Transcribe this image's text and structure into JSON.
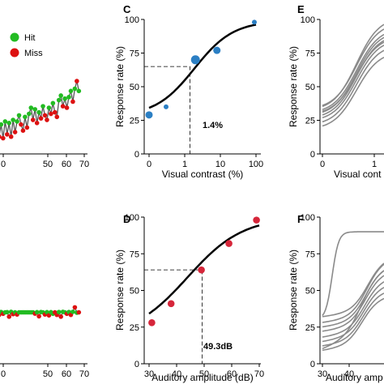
{
  "panel_labels": {
    "C": "C",
    "D": "D",
    "E": "E",
    "F": "F"
  },
  "legend": {
    "hit": "Hit",
    "miss": "Miss",
    "hit_color": "#22bb22",
    "miss_color": "#dd1111"
  },
  "colors": {
    "blue_point": "#2b7fc4",
    "red_point": "#d6263a",
    "fit_line": "#000000",
    "gray_line": "#8a8a8a",
    "hit": "#22bb22",
    "miss": "#dd1111",
    "trace": "#555555"
  },
  "annotations": {
    "threshold_visual": "1.4%",
    "threshold_auditory": "49.3dB"
  },
  "chart_data": [
    {
      "id": "A",
      "type": "line",
      "xlim": [
        0,
        70
      ],
      "xticks": [
        "0",
        "50",
        "60",
        "70"
      ],
      "series": [
        {
          "outcomes": [
            "miss",
            "hit",
            "miss",
            "hit",
            "miss",
            "hit",
            "miss",
            "hit",
            "miss",
            "hit",
            "miss",
            "hit",
            "hit",
            "miss",
            "miss",
            "hit",
            "miss",
            "hit",
            "hit",
            "miss",
            "hit",
            "miss",
            "hit",
            "miss",
            "hit",
            "miss",
            "miss",
            "hit",
            "miss",
            "hit",
            "miss",
            "miss",
            "hit",
            "hit",
            "miss",
            "hit",
            "miss",
            "hit",
            "hit",
            "miss",
            "hit",
            "miss",
            "hit"
          ],
          "levels": [
            0.05,
            0.22,
            0.12,
            0.28,
            0.1,
            0.32,
            0.15,
            0.3,
            0.12,
            0.34,
            0.18,
            0.32,
            0.4,
            0.28,
            0.2,
            0.38,
            0.24,
            0.42,
            0.5,
            0.34,
            0.48,
            0.3,
            0.44,
            0.36,
            0.52,
            0.4,
            0.34,
            0.5,
            0.42,
            0.56,
            0.44,
            0.38,
            0.6,
            0.66,
            0.52,
            0.62,
            0.5,
            0.64,
            0.72,
            0.58,
            0.75,
            0.85,
            0.72
          ]
        }
      ]
    },
    {
      "id": "B",
      "type": "line",
      "xlim": [
        0,
        70
      ],
      "xticks": [
        "0",
        "50",
        "60",
        "70"
      ],
      "series": [
        {
          "outcomes": [
            "miss",
            "hit",
            "miss",
            "hit",
            "miss",
            "hit",
            "hit",
            "miss",
            "hit",
            "miss",
            "hit",
            "miss",
            "hit",
            "hit",
            "hit",
            "hit",
            "hit",
            "hit",
            "hit",
            "hit",
            "miss",
            "hit",
            "miss",
            "hit",
            "hit",
            "miss",
            "hit",
            "miss",
            "hit",
            "hit",
            "miss",
            "miss",
            "hit",
            "miss",
            "hit",
            "hit",
            "miss",
            "hit",
            "miss",
            "hit",
            "miss",
            "hit",
            "miss"
          ],
          "levels": [
            0.05,
            0.02,
            -0.12,
            0.04,
            -0.06,
            0.02,
            0.03,
            -0.22,
            0.05,
            -0.08,
            0.02,
            -0.1,
            0.02,
            0.02,
            0.02,
            0.02,
            0.02,
            0.02,
            0.02,
            0.02,
            -0.05,
            0.03,
            -0.2,
            0.04,
            0.02,
            -0.1,
            0.03,
            -0.15,
            0.03,
            -0.06,
            0.02,
            -0.12,
            0.04,
            -0.22,
            0.05,
            0.02,
            -0.06,
            0.04,
            -0.12,
            0.05,
            0.3,
            0.0,
            0.02
          ]
        }
      ]
    },
    {
      "id": "C",
      "type": "scatter",
      "title": "",
      "xlabel": "Visual contrast (%)",
      "ylabel": "Response rate (%)",
      "x_scale": "log",
      "xticks": [
        "0",
        "1",
        "10",
        "100"
      ],
      "yticks": [
        "0",
        "25",
        "50",
        "75",
        "100"
      ],
      "ylim": [
        0,
        100
      ],
      "points": [
        {
          "x": 0,
          "y": 29,
          "size": "medium"
        },
        {
          "x": 0.3,
          "y": 35,
          "size": "small"
        },
        {
          "x": 2,
          "y": 70,
          "size": "large"
        },
        {
          "x": 8,
          "y": 77,
          "size": "medium"
        },
        {
          "x": 90,
          "y": 98,
          "size": "small"
        }
      ],
      "threshold": {
        "x": 1.4,
        "y": 65
      }
    },
    {
      "id": "D",
      "type": "scatter",
      "title": "",
      "xlabel": "Auditory amplitude (dB)",
      "ylabel": "Response rate (%)",
      "xticks": [
        "30",
        "40",
        "50",
        "60",
        "70"
      ],
      "yticks": [
        "0",
        "25",
        "50",
        "75",
        "100"
      ],
      "xlim": [
        30,
        70
      ],
      "ylim": [
        0,
        100
      ],
      "points": [
        {
          "x": 31,
          "y": 28
        },
        {
          "x": 38,
          "y": 41
        },
        {
          "x": 49,
          "y": 64
        },
        {
          "x": 59,
          "y": 82
        },
        {
          "x": 69,
          "y": 98
        }
      ],
      "threshold": {
        "x": 49.3,
        "y": 64
      }
    },
    {
      "id": "E",
      "type": "line",
      "xlabel": "Visual cont",
      "ylabel": "Response rate (%)",
      "xticks": [
        "0",
        "1"
      ],
      "yticks": [
        "0",
        "25",
        "50",
        "75",
        "100"
      ],
      "ylim": [
        0,
        100
      ],
      "curves": [
        {
          "start": 33,
          "mid": 68
        },
        {
          "start": 30,
          "mid": 64
        },
        {
          "start": 28,
          "mid": 62
        },
        {
          "start": 26,
          "mid": 60
        },
        {
          "start": 24,
          "mid": 57
        },
        {
          "start": 21,
          "mid": 54
        },
        {
          "start": 18,
          "mid": 50
        },
        {
          "start": 32,
          "mid": 72
        },
        {
          "start": 29,
          "mid": 58
        }
      ]
    },
    {
      "id": "F",
      "type": "line",
      "xlabel": "Auditory amp",
      "ylabel": "Response rate (%)",
      "xticks": [
        "30",
        "40"
      ],
      "yticks": [
        "0",
        "25",
        "50",
        "75",
        "100"
      ],
      "ylim": [
        0,
        100
      ],
      "curves": [
        {
          "start": 30,
          "end": 90,
          "steep": 1.0
        },
        {
          "start": 32,
          "end": 48,
          "steep": 0.2
        },
        {
          "start": 28,
          "end": 45,
          "steep": 0.25
        },
        {
          "start": 25,
          "end": 42,
          "steep": 0.22
        },
        {
          "start": 22,
          "end": 40,
          "steep": 0.2
        },
        {
          "start": 18,
          "end": 38,
          "steep": 0.18
        },
        {
          "start": 15,
          "end": 35,
          "steep": 0.16
        },
        {
          "start": 12,
          "end": 30,
          "steep": 0.15
        },
        {
          "start": 9,
          "end": 26,
          "steep": 0.14
        },
        {
          "start": 10,
          "end": 60,
          "steep": 0.28
        }
      ]
    }
  ]
}
